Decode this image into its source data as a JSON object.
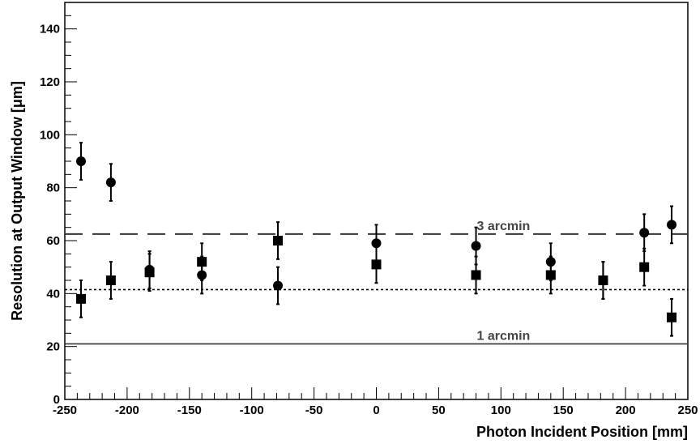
{
  "chart_data": {
    "type": "scatter",
    "xlabel": "Photon Incident Position [mm]",
    "ylabel": "Resolution at Output Window [μm]",
    "xlim": [
      -250,
      250
    ],
    "ylim": [
      0,
      150
    ],
    "x_ticks": [
      -250,
      -200,
      -150,
      -100,
      -50,
      0,
      50,
      100,
      150,
      200,
      250
    ],
    "y_ticks": [
      0,
      20,
      40,
      60,
      80,
      100,
      120,
      140
    ],
    "grid": false,
    "series": [
      {
        "marker": "circle",
        "color": "#000000",
        "points": [
          {
            "x": -237,
            "y": 90,
            "err": 7
          },
          {
            "x": -213,
            "y": 82,
            "err": 7
          },
          {
            "x": -182,
            "y": 49,
            "err": 7
          },
          {
            "x": -140,
            "y": 47,
            "err": 7
          },
          {
            "x": -79,
            "y": 43,
            "err": 7
          },
          {
            "x": 0,
            "y": 59,
            "err": 7
          },
          {
            "x": 80,
            "y": 58,
            "err": 7
          },
          {
            "x": 140,
            "y": 52,
            "err": 7
          },
          {
            "x": 182,
            "y": 45,
            "err": 7
          },
          {
            "x": 215,
            "y": 63,
            "err": 7
          },
          {
            "x": 237,
            "y": 66,
            "err": 7
          }
        ]
      },
      {
        "marker": "square",
        "color": "#000000",
        "points": [
          {
            "x": -237,
            "y": 38,
            "err": 7
          },
          {
            "x": -213,
            "y": 45,
            "err": 7
          },
          {
            "x": -182,
            "y": 48,
            "err": 7
          },
          {
            "x": -140,
            "y": 52,
            "err": 7
          },
          {
            "x": -79,
            "y": 60,
            "err": 7
          },
          {
            "x": 0,
            "y": 51,
            "err": 7
          },
          {
            "x": 80,
            "y": 47,
            "err": 7
          },
          {
            "x": 140,
            "y": 47,
            "err": 7
          },
          {
            "x": 182,
            "y": 45,
            "err": 7
          },
          {
            "x": 215,
            "y": 50,
            "err": 7
          },
          {
            "x": 237,
            "y": 31,
            "err": 7
          }
        ]
      }
    ],
    "reference_lines": [
      {
        "y": 62.5,
        "style": "dashed",
        "label": "3 arcmin"
      },
      {
        "y": 41.5,
        "style": "dotted",
        "label": ""
      },
      {
        "y": 21,
        "style": "solid",
        "label": "1 arcmin"
      }
    ]
  }
}
